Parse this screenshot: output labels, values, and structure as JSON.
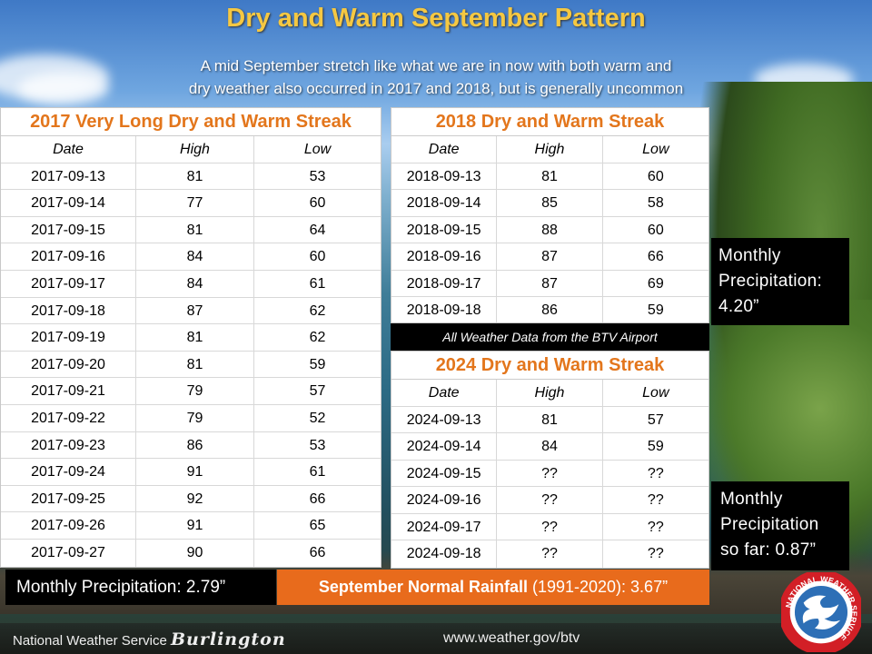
{
  "title": "Dry and Warm September Pattern",
  "subtitle_line1": "A mid September stretch like what we are in now with both warm and",
  "subtitle_line2": "dry weather also occurred in 2017 and 2018, but is generally uncommon",
  "columns": [
    "Date",
    "High",
    "Low"
  ],
  "table_2017": {
    "heading": "2017 Very Long Dry and Warm Streak",
    "rows": [
      [
        "2017-09-13",
        "81",
        "53"
      ],
      [
        "2017-09-14",
        "77",
        "60"
      ],
      [
        "2017-09-15",
        "81",
        "64"
      ],
      [
        "2017-09-16",
        "84",
        "60"
      ],
      [
        "2017-09-17",
        "84",
        "61"
      ],
      [
        "2017-09-18",
        "87",
        "62"
      ],
      [
        "2017-09-19",
        "81",
        "62"
      ],
      [
        "2017-09-20",
        "81",
        "59"
      ],
      [
        "2017-09-21",
        "79",
        "57"
      ],
      [
        "2017-09-22",
        "79",
        "52"
      ],
      [
        "2017-09-23",
        "86",
        "53"
      ],
      [
        "2017-09-24",
        "91",
        "61"
      ],
      [
        "2017-09-25",
        "92",
        "66"
      ],
      [
        "2017-09-26",
        "91",
        "65"
      ],
      [
        "2017-09-27",
        "90",
        "66"
      ]
    ],
    "precip": "Monthly Precipitation: 2.79”"
  },
  "table_2018": {
    "heading": "2018 Dry and Warm Streak",
    "rows": [
      [
        "2018-09-13",
        "81",
        "60"
      ],
      [
        "2018-09-14",
        "85",
        "58"
      ],
      [
        "2018-09-15",
        "88",
        "60"
      ],
      [
        "2018-09-16",
        "87",
        "66"
      ],
      [
        "2018-09-17",
        "87",
        "69"
      ],
      [
        "2018-09-18",
        "86",
        "59"
      ]
    ],
    "precip_line1": "Monthly",
    "precip_line2": "Precipitation:",
    "precip_line3": "4.20”"
  },
  "source_note": "All Weather Data from the BTV Airport",
  "table_2024": {
    "heading": "2024 Dry and Warm Streak",
    "rows": [
      [
        "2024-09-13",
        "81",
        "57"
      ],
      [
        "2024-09-14",
        "84",
        "59"
      ],
      [
        "2024-09-15",
        "??",
        "??"
      ],
      [
        "2024-09-16",
        "??",
        "??"
      ],
      [
        "2024-09-17",
        "??",
        "??"
      ],
      [
        "2024-09-18",
        "??",
        "??"
      ]
    ],
    "precip_line1": "Monthly",
    "precip_line2": "Precipitation",
    "precip_line3": "so far: 0.87”"
  },
  "normal_rain": {
    "label_bold": "September Normal Rainfall",
    "label_rest": " (1991-2020):  3.67”"
  },
  "footer": {
    "agency": "National Weather Service ",
    "city": "Burlington",
    "url": "www.weather.gov/btv"
  },
  "logo_text": "NATIONAL WEATHER SERVICE"
}
